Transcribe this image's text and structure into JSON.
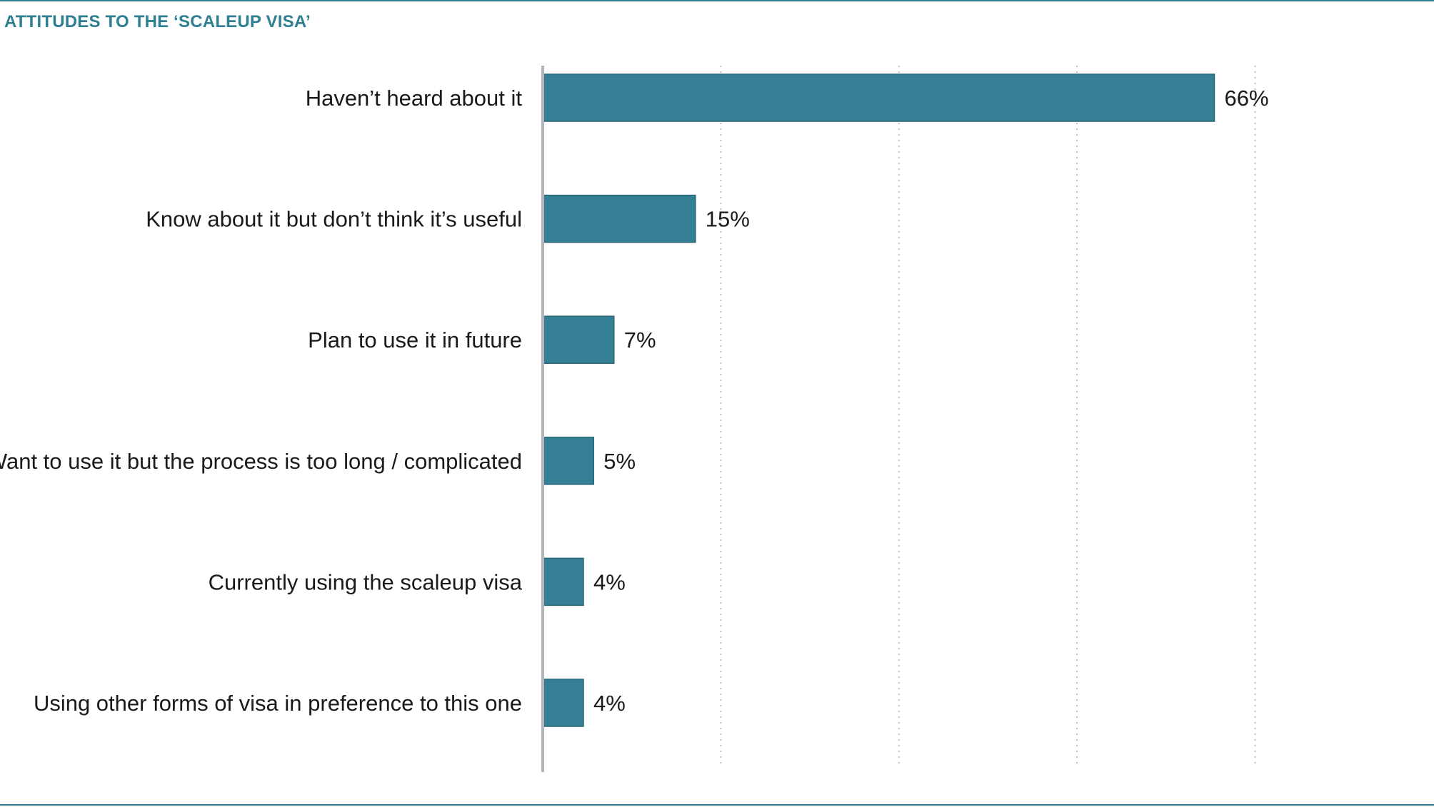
{
  "colors": {
    "bar": "#357f95",
    "bar_stroke": "#2a6678",
    "title": "#2e7f92",
    "rule": "#2e7f92",
    "axis": "#b4b4bc",
    "grid": "#bfbfbf",
    "text": "#1a1a1a"
  },
  "chart_data": {
    "type": "bar",
    "orientation": "horizontal",
    "title": "ATTITUDES TO THE ‘SCALEUP VISA’",
    "xlabel": "",
    "ylabel": "",
    "xlim": [
      0,
      70
    ],
    "gridlines": [
      17.5,
      35,
      52.5,
      70
    ],
    "grid": true,
    "legend": "none",
    "unit": "%",
    "categories": [
      "Haven’t heard about it",
      "Know about it but don’t think it’s useful",
      "Plan to use it in future",
      "Want to use it but the process is too long / complicated",
      "Currently using the scaleup visa",
      "Using other forms of visa in preference to this one"
    ],
    "values": [
      66,
      15,
      7,
      5,
      4,
      4
    ],
    "value_labels": [
      "66%",
      "15%",
      "7%",
      "5%",
      "4%",
      "4%"
    ]
  }
}
